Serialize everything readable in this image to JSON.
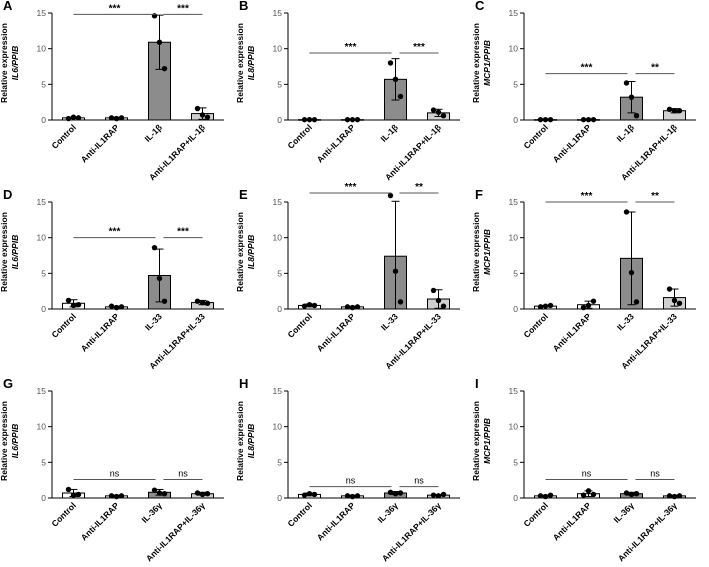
{
  "chart_data": [
    {
      "panel": "A",
      "type": "bar",
      "ylabel": "Relative expression",
      "gene": "IL6/PPIB",
      "ylim": [
        0,
        15
      ],
      "yticks": [
        0,
        5,
        10,
        15
      ],
      "categories": [
        "Control",
        "Anti-IL1RAP",
        "IL-1β",
        "Anti-IL1RAP+IL-1β"
      ],
      "values": [
        0.3,
        0.3,
        10.9,
        0.9
      ],
      "errors": [
        0.1,
        0.1,
        3.8,
        0.8
      ],
      "points": [
        [
          0.2,
          0.4,
          0.3
        ],
        [
          0.3,
          0.2,
          0.3
        ],
        [
          14.6,
          10.9,
          7.2
        ],
        [
          1.6,
          0.7,
          0.4
        ]
      ],
      "colors": [
        "#ffffff",
        "#ffffff",
        "#8c8c8c",
        "#d0d0d0"
      ],
      "comparisons": [
        {
          "from": 0,
          "to": 2,
          "y": 14.8,
          "label": "***"
        },
        {
          "from": 2,
          "to": 3,
          "y": 14.8,
          "label": "***"
        }
      ]
    },
    {
      "panel": "B",
      "type": "bar",
      "ylabel": "Relative expression",
      "gene": "IL8/PPIB",
      "ylim": [
        0,
        15
      ],
      "yticks": [
        0,
        5,
        10,
        15
      ],
      "categories": [
        "Control",
        "Anti-IL1RAP",
        "IL-1β",
        "Anti-IL1RAP+IL-1β"
      ],
      "values": [
        0.05,
        0.05,
        5.7,
        1.0
      ],
      "errors": [
        0.02,
        0.02,
        2.9,
        0.5
      ],
      "points": [
        [
          0.05,
          0.05,
          0.05
        ],
        [
          0.05,
          0.05,
          0.05
        ],
        [
          8.0,
          5.7,
          3.3
        ],
        [
          1.4,
          1.1,
          0.6
        ]
      ],
      "colors": [
        "#ffffff",
        "#ffffff",
        "#8c8c8c",
        "#d0d0d0"
      ],
      "comparisons": [
        {
          "from": 0,
          "to": 2,
          "y": 9.4,
          "label": "***"
        },
        {
          "from": 2,
          "to": 3,
          "y": 9.4,
          "label": "***"
        }
      ]
    },
    {
      "panel": "C",
      "type": "bar",
      "ylabel": "Relative expression",
      "gene": "MCP1/PPIB",
      "ylim": [
        0,
        15
      ],
      "yticks": [
        0,
        5,
        10,
        15
      ],
      "categories": [
        "Control",
        "Anti-IL1RAP",
        "IL-1β",
        "Anti-IL1RAP+IL-1β"
      ],
      "values": [
        0.05,
        0.05,
        3.2,
        1.3
      ],
      "errors": [
        0.02,
        0.02,
        2.2,
        0.3
      ],
      "points": [
        [
          0.05,
          0.05,
          0.05
        ],
        [
          0.05,
          0.05,
          0.05
        ],
        [
          5.2,
          3.2,
          0.6
        ],
        [
          1.5,
          1.3,
          1.3
        ]
      ],
      "colors": [
        "#ffffff",
        "#ffffff",
        "#8c8c8c",
        "#d0d0d0"
      ],
      "comparisons": [
        {
          "from": 0,
          "to": 2,
          "y": 6.5,
          "label": "***"
        },
        {
          "from": 2,
          "to": 3,
          "y": 6.5,
          "label": "**"
        }
      ]
    },
    {
      "panel": "D",
      "type": "bar",
      "ylabel": "Relative expression",
      "gene": "IL6/PPIB",
      "ylim": [
        0,
        15
      ],
      "yticks": [
        0,
        5,
        10,
        15
      ],
      "categories": [
        "Control",
        "Anti-IL1RAP",
        "IL-33",
        "Anti-IL1RAP+IL-33"
      ],
      "values": [
        0.8,
        0.3,
        4.7,
        0.9
      ],
      "errors": [
        0.5,
        0.1,
        3.7,
        0.3
      ],
      "points": [
        [
          1.2,
          0.5,
          0.6
        ],
        [
          0.4,
          0.2,
          0.3
        ],
        [
          8.6,
          4.3,
          1.1
        ],
        [
          1.1,
          0.9,
          0.8
        ]
      ],
      "colors": [
        "#ffffff",
        "#ffffff",
        "#8c8c8c",
        "#d0d0d0"
      ],
      "comparisons": [
        {
          "from": 0,
          "to": 2,
          "y": 10.0,
          "label": "***"
        },
        {
          "from": 2,
          "to": 3,
          "y": 10.0,
          "label": "***"
        }
      ]
    },
    {
      "panel": "E",
      "type": "bar",
      "ylabel": "Relative expression",
      "gene": "IL8/PPIB",
      "ylim": [
        0,
        15
      ],
      "yticks": [
        0,
        5,
        10,
        15
      ],
      "categories": [
        "Control",
        "Anti-IL1RAP",
        "IL-33",
        "Anti-IL1RAP+IL-33"
      ],
      "values": [
        0.5,
        0.3,
        7.4,
        1.4
      ],
      "errors": [
        0.2,
        0.1,
        7.7,
        1.3
      ],
      "points": [
        [
          0.4,
          0.6,
          0.5
        ],
        [
          0.3,
          0.2,
          0.3
        ],
        [
          15.9,
          5.3,
          1.0
        ],
        [
          2.6,
          1.2,
          0.4
        ]
      ],
      "colors": [
        "#ffffff",
        "#ffffff",
        "#8c8c8c",
        "#d0d0d0"
      ],
      "comparisons": [
        {
          "from": 0,
          "to": 2,
          "y": 16.6,
          "label": "***"
        },
        {
          "from": 2,
          "to": 3,
          "y": 16.6,
          "label": "**"
        }
      ]
    },
    {
      "panel": "F",
      "type": "bar",
      "ylabel": "Relative expression",
      "gene": "MCP1/PPIB",
      "ylim": [
        0,
        15
      ],
      "yticks": [
        0,
        5,
        10,
        15
      ],
      "categories": [
        "Control",
        "Anti-IL1RAP",
        "IL-33",
        "Anti-IL1RAP+IL-33"
      ],
      "values": [
        0.4,
        0.6,
        7.1,
        1.6
      ],
      "errors": [
        0.1,
        0.5,
        6.5,
        1.2
      ],
      "points": [
        [
          0.3,
          0.4,
          0.5
        ],
        [
          0.2,
          0.5,
          1.1
        ],
        [
          13.6,
          5.1,
          1.0
        ],
        [
          2.8,
          1.2,
          0.8
        ]
      ],
      "colors": [
        "#ffffff",
        "#ffffff",
        "#8c8c8c",
        "#d0d0d0"
      ],
      "comparisons": [
        {
          "from": 0,
          "to": 2,
          "y": 15.0,
          "label": "***"
        },
        {
          "from": 2,
          "to": 3,
          "y": 15.0,
          "label": "**"
        }
      ]
    },
    {
      "panel": "G",
      "type": "bar",
      "ylabel": "Relative expression",
      "gene": "IL6/PPIB",
      "ylim": [
        0,
        15
      ],
      "yticks": [
        0,
        5,
        10,
        15
      ],
      "categories": [
        "Control",
        "Anti-IL1RAP",
        "IL-36γ",
        "Anti-IL1RAP+IL-36γ"
      ],
      "values": [
        0.7,
        0.3,
        0.8,
        0.6
      ],
      "errors": [
        0.5,
        0.1,
        0.4,
        0.2
      ],
      "points": [
        [
          1.2,
          0.4,
          0.5
        ],
        [
          0.3,
          0.2,
          0.3
        ],
        [
          1.1,
          0.7,
          0.6
        ],
        [
          0.7,
          0.5,
          0.6
        ]
      ],
      "colors": [
        "#ffffff",
        "#ffffff",
        "#8c8c8c",
        "#d0d0d0"
      ],
      "comparisons": [
        {
          "from": 0,
          "to": 2,
          "y": 2.6,
          "label": "ns"
        },
        {
          "from": 2,
          "to": 3,
          "y": 2.6,
          "label": "ns"
        }
      ]
    },
    {
      "panel": "H",
      "type": "bar",
      "ylabel": "Relative expression",
      "gene": "IL8/PPIB",
      "ylim": [
        0,
        15
      ],
      "yticks": [
        0,
        5,
        10,
        15
      ],
      "categories": [
        "Control",
        "Anti-IL1RAP",
        "IL-36γ",
        "Anti-IL1RAP+IL-36γ"
      ],
      "values": [
        0.5,
        0.3,
        0.7,
        0.4
      ],
      "errors": [
        0.2,
        0.1,
        0.2,
        0.1
      ],
      "points": [
        [
          0.4,
          0.6,
          0.5
        ],
        [
          0.3,
          0.2,
          0.3
        ],
        [
          0.8,
          0.6,
          0.7
        ],
        [
          0.4,
          0.3,
          0.5
        ]
      ],
      "colors": [
        "#ffffff",
        "#ffffff",
        "#8c8c8c",
        "#d0d0d0"
      ],
      "comparisons": [
        {
          "from": 0,
          "to": 2,
          "y": 1.6,
          "label": "ns"
        },
        {
          "from": 2,
          "to": 3,
          "y": 1.6,
          "label": "ns"
        }
      ]
    },
    {
      "panel": "I",
      "type": "bar",
      "ylabel": "Relative expression",
      "gene": "MCP1/PPIB",
      "ylim": [
        0,
        15
      ],
      "yticks": [
        0,
        5,
        10,
        15
      ],
      "categories": [
        "Control",
        "Anti-IL1RAP",
        "IL-36γ",
        "Anti-IL1RAP+IL-36γ"
      ],
      "values": [
        0.3,
        0.6,
        0.6,
        0.3
      ],
      "errors": [
        0.1,
        0.4,
        0.2,
        0.1
      ],
      "points": [
        [
          0.3,
          0.2,
          0.4
        ],
        [
          0.4,
          1.0,
          0.5
        ],
        [
          0.7,
          0.5,
          0.6
        ],
        [
          0.3,
          0.2,
          0.3
        ]
      ],
      "colors": [
        "#ffffff",
        "#ffffff",
        "#8c8c8c",
        "#d0d0d0"
      ],
      "comparisons": [
        {
          "from": 0,
          "to": 2,
          "y": 2.6,
          "label": "ns"
        },
        {
          "from": 2,
          "to": 3,
          "y": 2.6,
          "label": "ns"
        }
      ]
    }
  ]
}
